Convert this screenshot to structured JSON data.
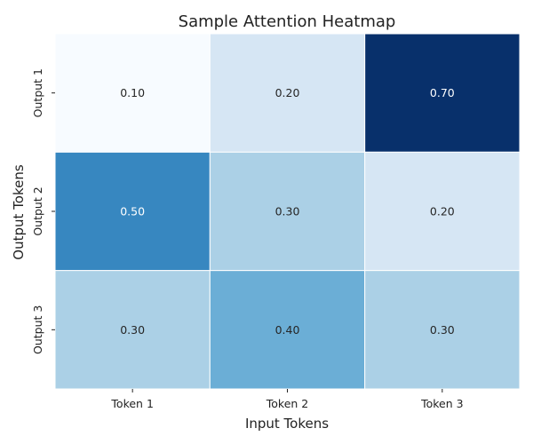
{
  "chart_data": {
    "type": "heatmap",
    "title": "Sample Attention Heatmap",
    "xlabel": "Input Tokens",
    "ylabel": "Output Tokens",
    "x_categories": [
      "Token 1",
      "Token 2",
      "Token 3"
    ],
    "y_categories": [
      "Output 1",
      "Output 2",
      "Output 3"
    ],
    "values": [
      [
        0.1,
        0.2,
        0.7
      ],
      [
        0.5,
        0.3,
        0.2
      ],
      [
        0.3,
        0.4,
        0.3
      ]
    ],
    "value_labels": [
      [
        "0.10",
        "0.20",
        "0.70"
      ],
      [
        "0.50",
        "0.30",
        "0.20"
      ],
      [
        "0.30",
        "0.40",
        "0.30"
      ]
    ],
    "colormap": "Blues",
    "vmin": 0.1,
    "vmax": 0.7,
    "annotated": true,
    "colorbar": false,
    "grid": false
  }
}
